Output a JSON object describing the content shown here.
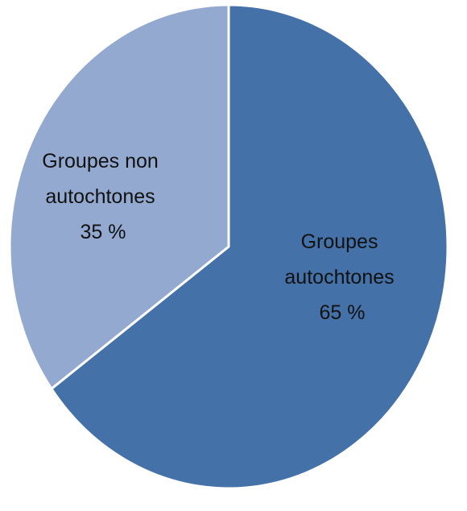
{
  "chart_data": {
    "type": "pie",
    "title": "",
    "legend": "none",
    "slices": [
      {
        "label_lines": [
          "Groupes",
          "autochtones"
        ],
        "value_label": "65 %",
        "value": 65,
        "color": "#4471a8"
      },
      {
        "label_lines": [
          "Groupes non",
          "autochtones"
        ],
        "value_label": "35 %",
        "value": 35,
        "color": "#93a9d0"
      }
    ]
  }
}
